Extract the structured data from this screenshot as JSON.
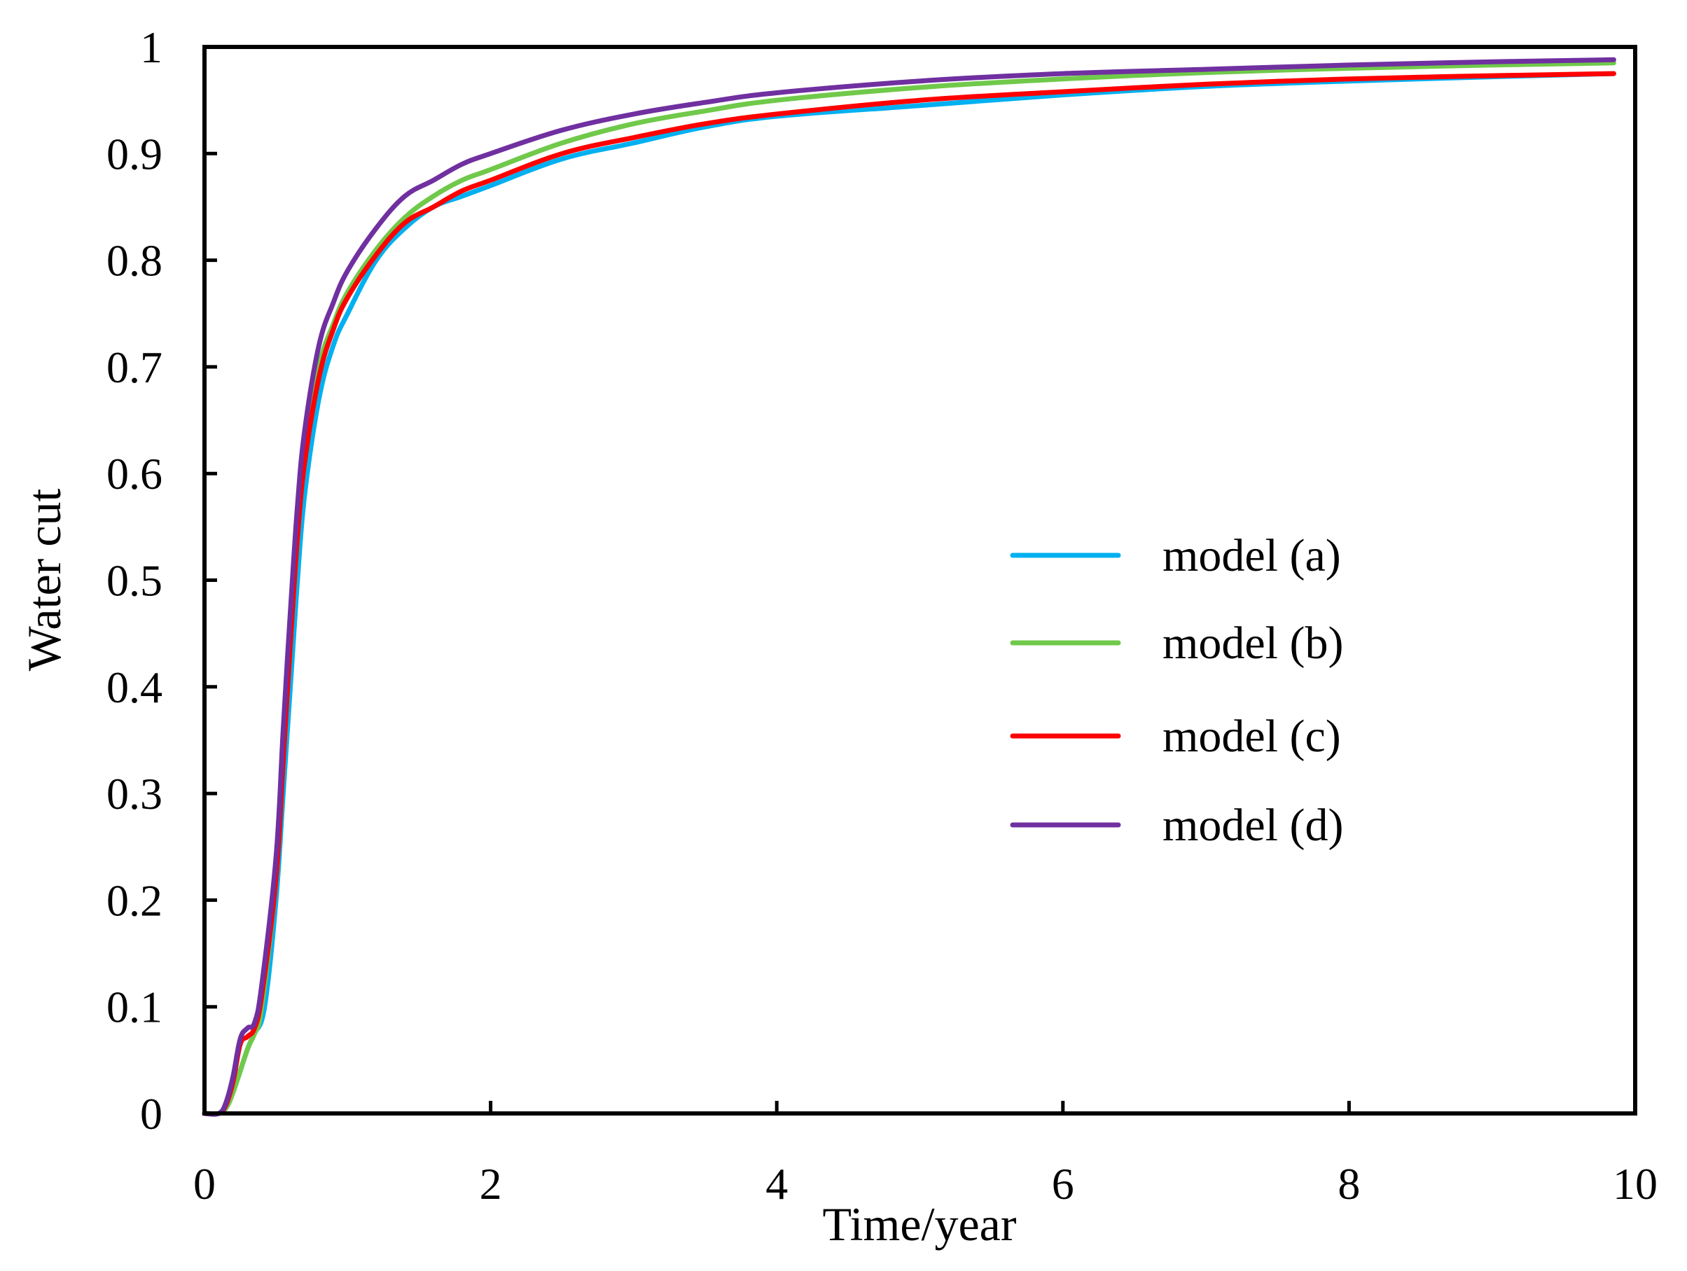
{
  "chart_data": {
    "type": "line",
    "title": "",
    "xlabel": "Time/year",
    "ylabel": "Water cut",
    "xlim": [
      0,
      10
    ],
    "ylim": [
      0,
      1
    ],
    "grid": false,
    "legend_position": "center-right",
    "x_ticks": [
      0,
      2,
      4,
      6,
      8,
      10
    ],
    "x_tick_labels": [
      "0",
      "2",
      "4",
      "6",
      "8",
      "10"
    ],
    "y_ticks": [
      0,
      0.1,
      0.2,
      0.3,
      0.4,
      0.5,
      0.6,
      0.7,
      0.8,
      0.9,
      1
    ],
    "y_tick_labels": [
      "0",
      "0.1",
      "0.2",
      "0.3",
      "0.4",
      "0.5",
      "0.6",
      "0.7",
      "0.8",
      "0.9",
      "1"
    ],
    "series": [
      {
        "name": "model (a)",
        "color": "#00B0F0",
        "x": [
          0,
          0.1,
          0.15,
          0.2,
          0.3,
          0.35,
          0.42,
          0.5,
          0.55,
          0.6,
          0.65,
          0.7,
          0.8,
          0.9,
          1.0,
          1.2,
          1.4,
          1.6,
          1.8,
          2.0,
          2.5,
          3.0,
          3.5,
          4.0,
          5.0,
          6.0,
          7.0,
          8.0,
          9.0,
          9.85
        ],
        "y": [
          0,
          0,
          0.005,
          0.02,
          0.06,
          0.075,
          0.1,
          0.2,
          0.3,
          0.4,
          0.5,
          0.58,
          0.67,
          0.72,
          0.75,
          0.8,
          0.83,
          0.85,
          0.86,
          0.87,
          0.895,
          0.91,
          0.925,
          0.935,
          0.945,
          0.955,
          0.963,
          0.968,
          0.972,
          0.975
        ]
      },
      {
        "name": "model (b)",
        "color": "#70C94A",
        "x": [
          0,
          0.1,
          0.15,
          0.2,
          0.3,
          0.35,
          0.4,
          0.5,
          0.55,
          0.6,
          0.65,
          0.7,
          0.8,
          0.9,
          1.0,
          1.2,
          1.4,
          1.6,
          1.8,
          2.0,
          2.5,
          3.0,
          3.5,
          4.0,
          5.0,
          6.0,
          7.0,
          8.0,
          9.0,
          9.85
        ],
        "y": [
          0,
          0,
          0.005,
          0.02,
          0.06,
          0.075,
          0.1,
          0.22,
          0.33,
          0.44,
          0.54,
          0.62,
          0.7,
          0.74,
          0.77,
          0.81,
          0.84,
          0.86,
          0.875,
          0.885,
          0.91,
          0.928,
          0.94,
          0.95,
          0.962,
          0.97,
          0.976,
          0.98,
          0.983,
          0.985
        ]
      },
      {
        "name": "model (c)",
        "color": "#FF0000",
        "x": [
          0,
          0.1,
          0.15,
          0.2,
          0.25,
          0.3,
          0.35,
          0.4,
          0.5,
          0.55,
          0.6,
          0.65,
          0.7,
          0.8,
          0.9,
          1.0,
          1.2,
          1.4,
          1.6,
          1.8,
          2.0,
          2.5,
          3.0,
          3.5,
          4.0,
          5.0,
          6.0,
          7.0,
          8.0,
          9.0,
          9.85
        ],
        "y": [
          0,
          0,
          0.008,
          0.03,
          0.065,
          0.072,
          0.08,
          0.11,
          0.22,
          0.33,
          0.44,
          0.54,
          0.61,
          0.69,
          0.735,
          0.765,
          0.805,
          0.835,
          0.85,
          0.865,
          0.875,
          0.9,
          0.915,
          0.928,
          0.937,
          0.95,
          0.958,
          0.965,
          0.97,
          0.973,
          0.975
        ]
      },
      {
        "name": "model (d)",
        "color": "#7030A0",
        "x": [
          0,
          0.1,
          0.15,
          0.2,
          0.25,
          0.3,
          0.35,
          0.4,
          0.5,
          0.55,
          0.6,
          0.65,
          0.7,
          0.8,
          0.9,
          1.0,
          1.2,
          1.4,
          1.6,
          1.8,
          2.0,
          2.5,
          3.0,
          3.5,
          4.0,
          5.0,
          6.0,
          7.0,
          8.0,
          9.0,
          9.85
        ],
        "y": [
          0,
          0,
          0.01,
          0.035,
          0.07,
          0.08,
          0.085,
          0.12,
          0.24,
          0.36,
          0.47,
          0.57,
          0.64,
          0.72,
          0.76,
          0.79,
          0.83,
          0.86,
          0.875,
          0.89,
          0.9,
          0.922,
          0.937,
          0.948,
          0.957,
          0.968,
          0.975,
          0.979,
          0.983,
          0.986,
          0.988
        ]
      }
    ]
  }
}
